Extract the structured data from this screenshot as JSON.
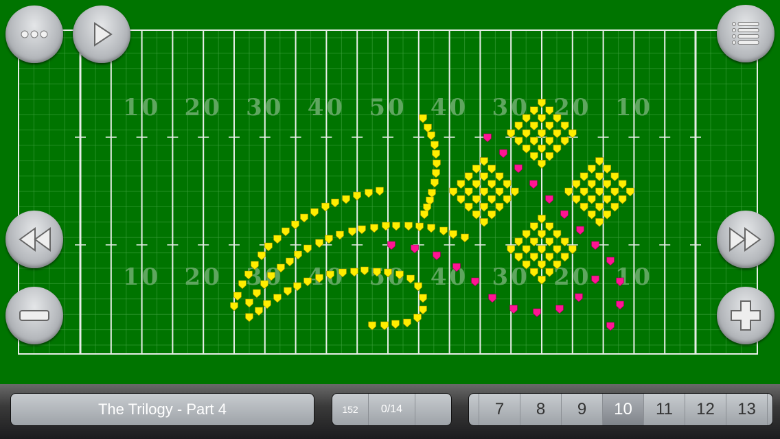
{
  "field": {
    "yard_numbers_top": [
      "10",
      "20",
      "30",
      "40",
      "50",
      "40",
      "30",
      "20",
      "10"
    ],
    "yard_numbers_bottom": [
      "10",
      "20",
      "30",
      "40",
      "50",
      "40",
      "30",
      "20",
      "10"
    ],
    "colors": {
      "turf": "#007400",
      "lines": "#e8eee8",
      "numbers": "#5fa65f",
      "performer_primary": "#ffee00",
      "performer_secondary": "#ff1493"
    }
  },
  "buttons": {
    "more": "more-icon",
    "play": "play-icon",
    "menu": "list-icon",
    "rewind": "rewind-icon",
    "fast_forward": "fast-forward-icon",
    "zoom_out": "minus-icon",
    "zoom_in": "plus-icon"
  },
  "bottom_bar": {
    "show_title": "The Trilogy - Part 4",
    "counter_a": "152",
    "counter_b": "0/14",
    "counter_c": "",
    "pages": [
      "7",
      "8",
      "9",
      "10",
      "11",
      "12",
      "13"
    ],
    "selected_page": "10"
  }
}
